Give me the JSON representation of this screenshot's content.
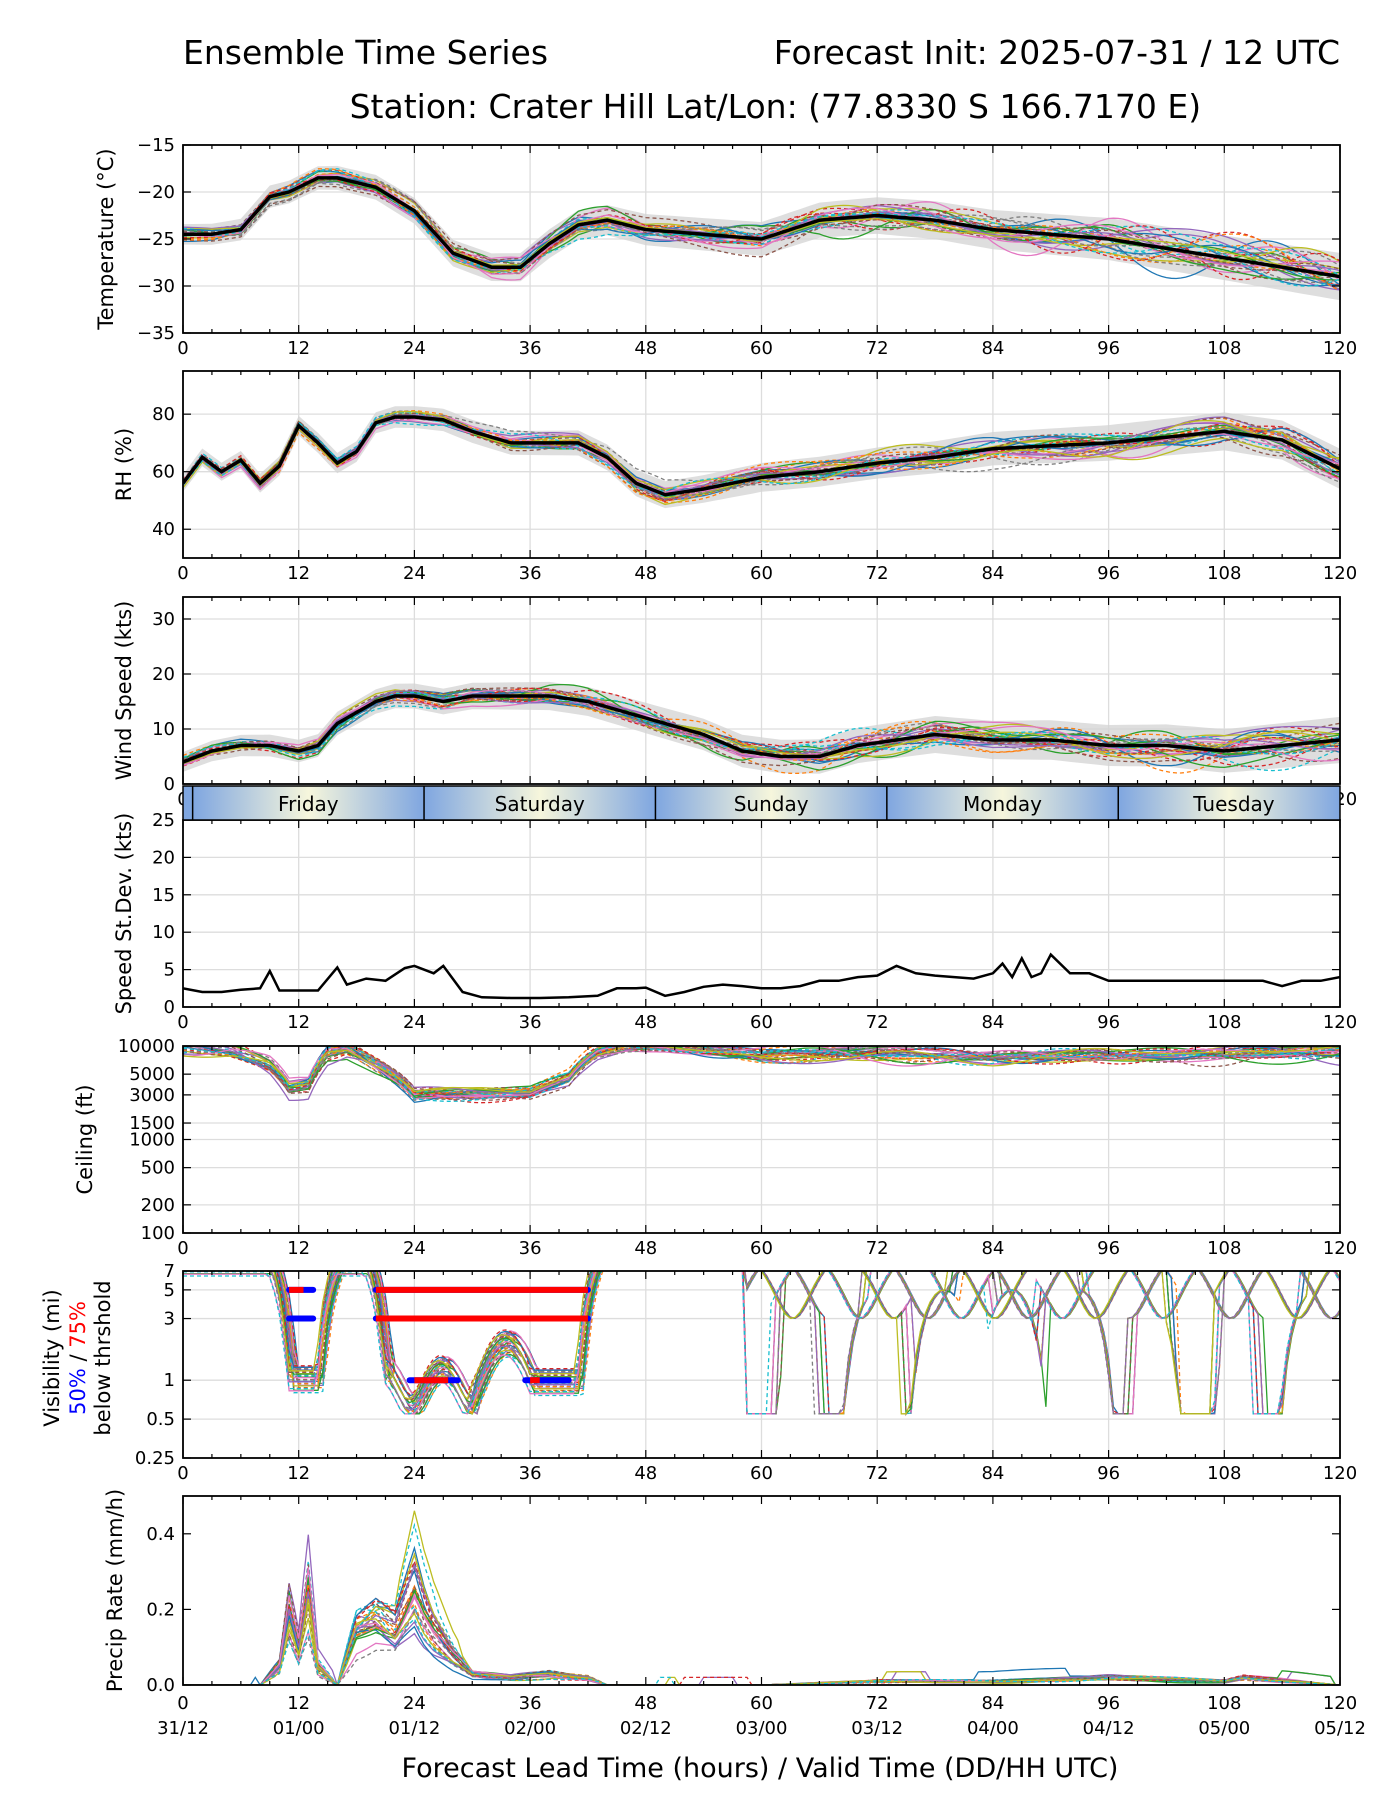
{
  "header": {
    "title_left": "Ensemble Time Series",
    "title_right": "Forecast Init: 2025-07-31 / 12 UTC",
    "station": "Station: Crater Hill",
    "latlon": "Lat/Lon: (77.8330 S 166.7170 E)"
  },
  "x_axis": {
    "label": "Forecast Lead Time (hours) / Valid Time (DD/HH UTC)",
    "hour_ticks": [
      "0",
      "12",
      "24",
      "36",
      "48",
      "60",
      "72",
      "84",
      "96",
      "108",
      "120"
    ],
    "valid_ticks": [
      "31/12",
      "01/00",
      "01/12",
      "02/00",
      "02/12",
      "03/00",
      "03/12",
      "04/00",
      "04/12",
      "05/00",
      "05/12"
    ]
  },
  "day_band": {
    "days": [
      "Friday",
      "Saturday",
      "Sunday",
      "Monday",
      "Tuesday"
    ],
    "boundaries_hours": [
      1,
      25,
      49,
      73,
      97
    ]
  },
  "visibility_label": {
    "line1": "Visibility (mi)",
    "pct50": "50%",
    "slash": " / ",
    "pct75": "75%",
    "line3": "below thrshold"
  },
  "colors": {
    "mean": "#000000",
    "spread": "#d3d3d3",
    "pct50": "#0000ff",
    "pct75": "#ff0000",
    "members": [
      "#1f77b4",
      "#ff7f0e",
      "#2ca02c",
      "#d62728",
      "#9467bd",
      "#8c564b",
      "#e377c2",
      "#7f7f7f",
      "#bcbd22",
      "#17becf"
    ]
  },
  "chart_data": [
    {
      "type": "line",
      "panel": "temperature",
      "ylabel": "Temperature (°C)",
      "ylim": [
        -35,
        -15
      ],
      "yticks": [
        "-35",
        "-30",
        "-25",
        "-20",
        "-15"
      ],
      "xlim": [
        0,
        120
      ],
      "grid": true,
      "ensemble_members": 30,
      "mean": {
        "x": [
          0,
          3,
          6,
          9,
          11,
          14,
          16,
          20,
          24,
          28,
          32,
          35,
          38,
          41,
          44,
          48,
          54,
          60,
          66,
          72,
          78,
          84,
          90,
          96,
          102,
          108,
          114,
          120
        ],
        "y": [
          -24.5,
          -24.5,
          -24,
          -20.5,
          -20,
          -18.5,
          -18.5,
          -19.5,
          -22,
          -26.5,
          -28,
          -28,
          -25.5,
          -23.5,
          -23,
          -24,
          -24.5,
          -25,
          -23,
          -22.5,
          -23,
          -24,
          -24.5,
          -25,
          -26,
          -27,
          -28,
          -29
        ]
      },
      "spread_width": 1.8
    },
    {
      "type": "line",
      "panel": "relative_humidity",
      "ylabel": "RH (%)",
      "ylim": [
        30,
        95
      ],
      "yticks": [
        "40",
        "60",
        "80"
      ],
      "xlim": [
        0,
        120
      ],
      "grid": true,
      "ensemble_members": 30,
      "mean": {
        "x": [
          0,
          2,
          4,
          6,
          8,
          10,
          12,
          14,
          16,
          18,
          20,
          22,
          24,
          27,
          30,
          34,
          38,
          41,
          44,
          47,
          50,
          54,
          60,
          66,
          72,
          78,
          84,
          90,
          96,
          102,
          108,
          114,
          120
        ],
        "y": [
          56,
          65,
          60,
          64,
          56,
          62,
          76,
          70,
          63,
          67,
          77,
          79,
          79,
          78,
          74,
          70,
          70,
          70,
          65,
          56,
          52,
          54,
          58,
          60,
          63,
          65,
          68,
          69,
          70,
          72,
          74,
          71,
          61
        ]
      },
      "spread_width": 5
    },
    {
      "type": "line",
      "panel": "wind_speed",
      "ylabel": "Wind Speed (kts)",
      "ylim": [
        0,
        34
      ],
      "yticks": [
        "0",
        "10",
        "20",
        "30"
      ],
      "xlim": [
        0,
        120
      ],
      "grid": true,
      "ensemble_members": 30,
      "mean": {
        "x": [
          0,
          3,
          6,
          9,
          12,
          14,
          16,
          18,
          20,
          22,
          24,
          27,
          30,
          34,
          38,
          42,
          46,
          50,
          54,
          58,
          62,
          66,
          70,
          74,
          78,
          84,
          90,
          96,
          102,
          108,
          114,
          120
        ],
        "y": [
          4,
          6,
          7,
          7,
          6,
          7,
          11,
          13,
          15,
          16,
          16,
          15,
          16,
          16,
          16,
          15,
          13,
          11,
          9,
          6,
          5,
          5,
          7,
          8,
          9,
          8,
          8,
          7,
          7,
          6,
          7,
          8
        ]
      },
      "spread_width": 3
    },
    {
      "type": "line",
      "panel": "speed_stdev",
      "ylabel": "Speed St.Dev. (kts)",
      "ylim": [
        0,
        25
      ],
      "yticks": [
        "0",
        "5",
        "10",
        "15",
        "20",
        "25"
      ],
      "xlim": [
        0,
        120
      ],
      "grid": true,
      "series": [
        {
          "x": [
            0,
            2,
            4,
            6,
            8,
            9,
            10,
            12,
            14,
            16,
            17,
            19,
            21,
            23,
            24,
            26,
            27,
            29,
            31,
            34,
            37,
            40,
            43,
            45,
            47,
            48,
            50,
            52,
            54,
            56,
            58,
            60,
            62,
            64,
            66,
            68,
            70,
            72,
            74,
            76,
            78,
            80,
            82,
            84,
            85,
            86,
            87,
            88,
            89,
            90,
            92,
            94,
            96,
            100,
            104,
            108,
            112,
            114,
            116,
            118,
            120
          ],
          "y": [
            2.5,
            2,
            2,
            2.3,
            2.5,
            4.8,
            2.2,
            2.2,
            2.2,
            5.3,
            3,
            3.8,
            3.5,
            5.2,
            5.5,
            4.5,
            5.5,
            2,
            1.3,
            1.2,
            1.2,
            1.3,
            1.5,
            2.5,
            2.5,
            2.6,
            1.5,
            2,
            2.7,
            3,
            2.8,
            2.5,
            2.5,
            2.8,
            3.5,
            3.5,
            4,
            4.2,
            5.5,
            4.5,
            4.2,
            4,
            3.8,
            4.5,
            5.8,
            4,
            6.5,
            4,
            4.5,
            7,
            4.5,
            4.5,
            3.5,
            3.5,
            3.5,
            3.5,
            3.5,
            2.8,
            3.5,
            3.5,
            4
          ]
        }
      ]
    },
    {
      "type": "line",
      "panel": "ceiling",
      "ylabel": "Ceiling (ft)",
      "yscale": "log",
      "ylim": [
        100,
        10000
      ],
      "yticks": [
        "100",
        "200",
        "500",
        "1000",
        "1500",
        "3000",
        "5000",
        "10000"
      ],
      "xlim": [
        0,
        120
      ],
      "grid": true,
      "ensemble_members": 30,
      "typical_member": {
        "x": [
          0,
          5,
          9,
          11,
          13,
          15,
          17,
          20,
          24,
          30,
          36,
          40,
          43,
          46,
          50,
          60,
          72,
          84,
          96,
          108,
          120
        ],
        "y": [
          9500,
          8500,
          6000,
          3500,
          3800,
          8500,
          9500,
          6500,
          3000,
          3000,
          3200,
          4500,
          8500,
          10000,
          10000,
          8000,
          8500,
          7500,
          8000,
          8000,
          9000
        ]
      }
    },
    {
      "type": "line",
      "panel": "visibility",
      "yscale": "log",
      "ylim": [
        0.25,
        7
      ],
      "yticks": [
        "0.25",
        "0.5",
        "1",
        "3",
        "5",
        "7"
      ],
      "xlim": [
        0,
        120
      ],
      "grid": true,
      "ensemble_members": 30,
      "threshold_bars_50pct": [
        {
          "x": [
            11,
            13.5
          ],
          "y": 5
        },
        {
          "x": [
            11,
            13.5
          ],
          "y": 3
        },
        {
          "x": [
            20,
            42
          ],
          "y": 5
        },
        {
          "x": [
            20,
            42
          ],
          "y": 3
        },
        {
          "x": [
            23.5,
            28.5
          ],
          "y": 1
        },
        {
          "x": [
            35.5,
            40
          ],
          "y": 1
        }
      ],
      "threshold_bars_75pct": [
        {
          "x": [
            11,
            12.5
          ],
          "y": 5
        },
        {
          "x": [
            20,
            42
          ],
          "y": 5
        },
        {
          "x": [
            20,
            42
          ],
          "y": 3
        },
        {
          "x": [
            24,
            27.5
          ],
          "y": 1
        },
        {
          "x": [
            36,
            37
          ],
          "y": 1
        }
      ]
    },
    {
      "type": "line",
      "panel": "precip_rate",
      "ylabel": "Precip Rate (mm/h)",
      "ylim": [
        0,
        0.5
      ],
      "yticks": [
        "0.0",
        "0.2",
        "0.4"
      ],
      "xlim": [
        0,
        120
      ],
      "grid": false,
      "ensemble_members": 30,
      "typical_member": {
        "x": [
          0,
          8,
          10,
          11,
          12,
          13,
          14,
          16,
          18,
          20,
          22,
          24,
          25,
          26,
          28,
          30,
          34,
          38,
          42,
          44,
          60,
          72,
          84,
          96,
          108,
          110,
          120
        ],
        "y": [
          0,
          0,
          0.05,
          0.2,
          0.1,
          0.25,
          0.05,
          0,
          0.15,
          0.18,
          0.15,
          0.27,
          0.2,
          0.15,
          0.08,
          0.03,
          0.02,
          0.03,
          0.02,
          0,
          0,
          0.01,
          0.01,
          0.02,
          0.01,
          0.02,
          0
        ]
      }
    }
  ]
}
